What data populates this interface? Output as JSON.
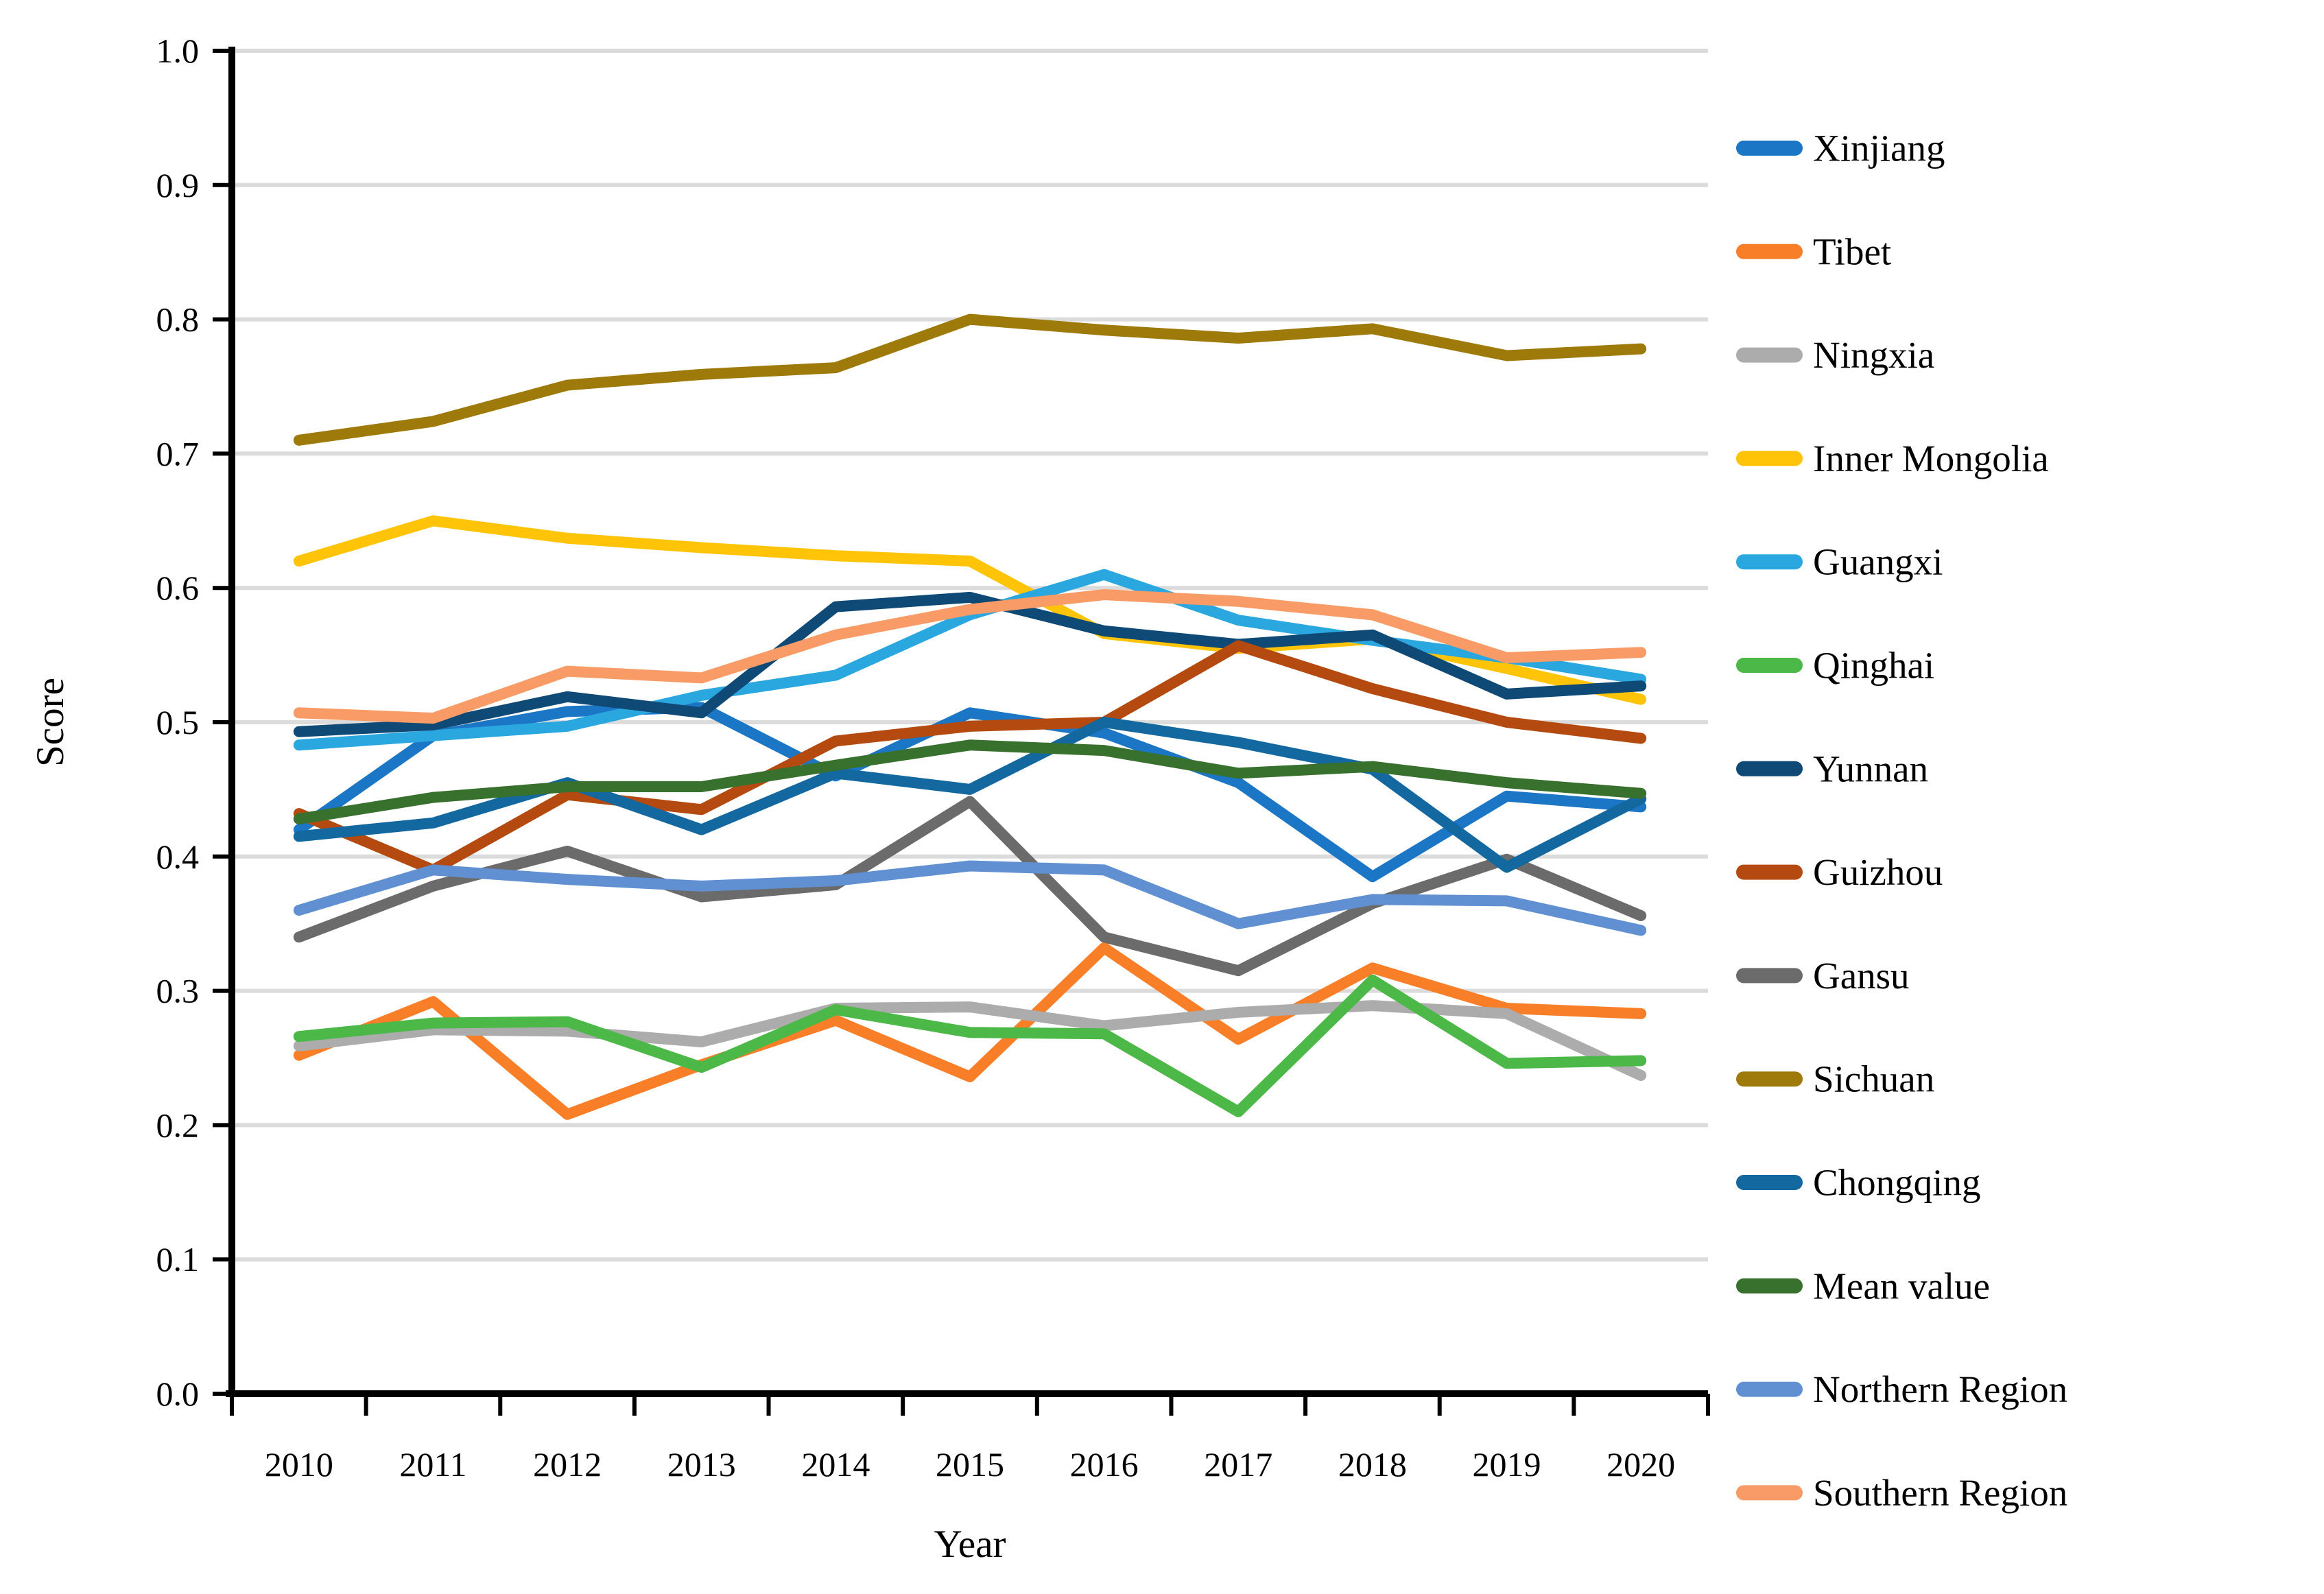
{
  "chart_data": {
    "type": "line",
    "title": "",
    "xlabel": "Year",
    "ylabel": "Score",
    "categories": [
      "2010",
      "2011",
      "2012",
      "2013",
      "2014",
      "2015",
      "2016",
      "2017",
      "2018",
      "2019",
      "2020"
    ],
    "ylim": [
      0.0,
      1.0
    ],
    "ytick_step": 0.1,
    "grid": true,
    "legend_position": "right",
    "gridline_color": "#DBDBDB",
    "axis_color": "#000000",
    "series": [
      {
        "name": "Xinjiang",
        "color": "#1B76C5",
        "values": [
          0.42,
          0.49,
          0.508,
          0.511,
          0.46,
          0.507,
          0.492,
          0.455,
          0.385,
          0.445,
          0.437
        ]
      },
      {
        "name": "Tibet",
        "color": "#F87E28",
        "values": [
          0.252,
          0.292,
          0.208,
          0.245,
          0.278,
          0.236,
          0.332,
          0.264,
          0.317,
          0.287,
          0.283
        ]
      },
      {
        "name": "Ningxia",
        "color": "#ACACAC",
        "values": [
          0.259,
          0.271,
          0.27,
          0.262,
          0.287,
          0.288,
          0.274,
          0.284,
          0.289,
          0.283,
          0.237
        ]
      },
      {
        "name": "Inner Mongolia",
        "color": "#FFC408",
        "values": [
          0.62,
          0.65,
          0.637,
          0.63,
          0.624,
          0.62,
          0.566,
          0.555,
          0.562,
          0.54,
          0.517
        ]
      },
      {
        "name": "Guangxi",
        "color": "#2BA7DF",
        "values": [
          0.483,
          0.49,
          0.497,
          0.52,
          0.535,
          0.58,
          0.61,
          0.576,
          0.561,
          0.548,
          0.532
        ]
      },
      {
        "name": "Qinghai",
        "color": "#4CB848",
        "values": [
          0.266,
          0.276,
          0.277,
          0.243,
          0.286,
          0.269,
          0.268,
          0.21,
          0.308,
          0.246,
          0.248
        ]
      },
      {
        "name": "Yunnan",
        "color": "#0F4975",
        "values": [
          0.493,
          0.498,
          0.519,
          0.507,
          0.586,
          0.593,
          0.568,
          0.558,
          0.565,
          0.521,
          0.527
        ]
      },
      {
        "name": "Guizhou",
        "color": "#B44A10",
        "values": [
          0.432,
          0.39,
          0.446,
          0.435,
          0.486,
          0.497,
          0.5,
          0.557,
          0.525,
          0.5,
          0.488
        ]
      },
      {
        "name": "Gansu",
        "color": "#6B6B6B",
        "values": [
          0.34,
          0.378,
          0.404,
          0.37,
          0.379,
          0.441,
          0.34,
          0.315,
          0.365,
          0.398,
          0.356
        ]
      },
      {
        "name": "Sichuan",
        "color": "#9E7A0A",
        "values": [
          0.71,
          0.724,
          0.751,
          0.759,
          0.764,
          0.8,
          0.792,
          0.786,
          0.793,
          0.773,
          0.778
        ]
      },
      {
        "name": "Chongqing",
        "color": "#1468A0",
        "values": [
          0.415,
          0.425,
          0.455,
          0.42,
          0.462,
          0.45,
          0.5,
          0.485,
          0.465,
          0.392,
          0.443
        ]
      },
      {
        "name": "Mean value",
        "color": "#38702E",
        "values": [
          0.428,
          0.444,
          0.452,
          0.452,
          0.468,
          0.483,
          0.479,
          0.462,
          0.467,
          0.455,
          0.447
        ]
      },
      {
        "name": "Northern Region",
        "color": "#6090D2",
        "values": [
          0.36,
          0.39,
          0.383,
          0.378,
          0.382,
          0.393,
          0.39,
          0.35,
          0.368,
          0.367,
          0.345
        ]
      },
      {
        "name": "Southern Region",
        "color": "#F89B66",
        "values": [
          0.507,
          0.503,
          0.538,
          0.533,
          0.565,
          0.584,
          0.595,
          0.59,
          0.58,
          0.548,
          0.552
        ]
      }
    ]
  }
}
